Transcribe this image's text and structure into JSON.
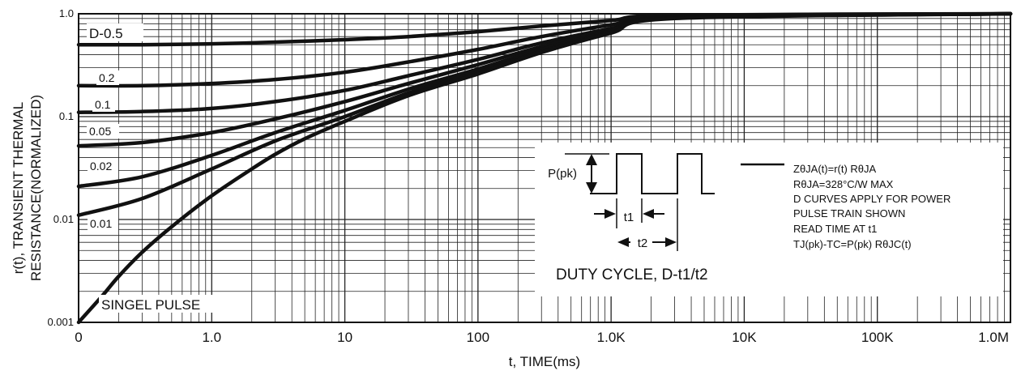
{
  "chart_data": {
    "type": "line",
    "title": "",
    "ylabel_line1": "r(t), TRANSIENT THERMAL",
    "ylabel_line2": "RESISTANCE(NORMALIZED)",
    "xlabel": "t, TIME(ms)",
    "x_scale": "log",
    "y_scale": "log",
    "xlim": [
      0.1,
      1000000
    ],
    "ylim": [
      0.001,
      1.0
    ],
    "grid": true,
    "x_ticks": [
      {
        "value": 0.1,
        "label": "0"
      },
      {
        "value": 1,
        "label": "1.0"
      },
      {
        "value": 10,
        "label": "10"
      },
      {
        "value": 100,
        "label": "100"
      },
      {
        "value": 1000,
        "label": "1.0K"
      },
      {
        "value": 10000,
        "label": "10K"
      },
      {
        "value": 100000,
        "label": "100K"
      },
      {
        "value": 1000000,
        "label": "1.0M"
      }
    ],
    "y_ticks": [
      {
        "value": 1.0,
        "label": "1.0"
      },
      {
        "value": 0.1,
        "label": "0.1"
      },
      {
        "value": 0.01,
        "label": "0.01"
      },
      {
        "value": 0.001,
        "label": "0.001"
      }
    ],
    "series": [
      {
        "name": "D-0.5",
        "x": [
          0.1,
          0.3,
          1,
          3,
          10,
          30,
          100,
          300,
          1000,
          3000,
          1000000
        ],
        "y": [
          0.5,
          0.5,
          0.51,
          0.53,
          0.56,
          0.6,
          0.67,
          0.76,
          0.86,
          0.97,
          1.0
        ]
      },
      {
        "name": "0.2",
        "x": [
          0.1,
          0.3,
          1,
          3,
          10,
          30,
          100,
          300,
          1000,
          3000,
          1000000
        ],
        "y": [
          0.2,
          0.2,
          0.21,
          0.23,
          0.27,
          0.34,
          0.45,
          0.6,
          0.78,
          0.95,
          1.0
        ]
      },
      {
        "name": "0.1",
        "x": [
          0.1,
          0.3,
          1,
          3,
          10,
          30,
          100,
          300,
          1000,
          3000,
          1000000
        ],
        "y": [
          0.11,
          0.112,
          0.12,
          0.14,
          0.18,
          0.25,
          0.36,
          0.52,
          0.72,
          0.93,
          1.0
        ]
      },
      {
        "name": "0.05",
        "x": [
          0.1,
          0.3,
          1,
          3,
          10,
          30,
          100,
          300,
          1000,
          3000,
          1000000
        ],
        "y": [
          0.052,
          0.056,
          0.07,
          0.095,
          0.14,
          0.21,
          0.32,
          0.48,
          0.7,
          0.92,
          1.0
        ]
      },
      {
        "name": "0.02",
        "x": [
          0.1,
          0.3,
          1,
          3,
          10,
          30,
          100,
          300,
          1000,
          3000,
          1000000
        ],
        "y": [
          0.021,
          0.026,
          0.042,
          0.07,
          0.115,
          0.185,
          0.29,
          0.45,
          0.68,
          0.92,
          1.0
        ]
      },
      {
        "name": "0.01",
        "x": [
          0.1,
          0.3,
          1,
          3,
          10,
          30,
          100,
          300,
          1000,
          3000,
          1000000
        ],
        "y": [
          0.011,
          0.016,
          0.031,
          0.058,
          0.1,
          0.17,
          0.27,
          0.43,
          0.66,
          0.91,
          1.0
        ]
      },
      {
        "name": "SINGEL PULSE",
        "x": [
          0.1,
          0.15,
          0.2,
          0.3,
          0.5,
          1,
          2,
          3,
          5,
          10,
          30,
          100,
          300,
          1000,
          3000,
          1000000
        ],
        "y": [
          0.001,
          0.0018,
          0.0028,
          0.0048,
          0.0085,
          0.017,
          0.031,
          0.043,
          0.061,
          0.09,
          0.16,
          0.26,
          0.42,
          0.65,
          0.9,
          1.0
        ]
      }
    ],
    "inset": {
      "pulse_label": "P(pk)",
      "t1_label": "t1",
      "t2_label": "t2",
      "duty_cycle_label": "DUTY CYCLE, D-t1/t2",
      "notes": [
        "ZθJA(t)=r(t) RθJA",
        "RθJA=328°C/W MAX",
        "D CURVES APPLY FOR POWER",
        "PULSE TRAIN SHOWN",
        "READ TIME AT t1",
        "TJ(pk)-TC=P(pk) RθJC(t)"
      ]
    }
  }
}
